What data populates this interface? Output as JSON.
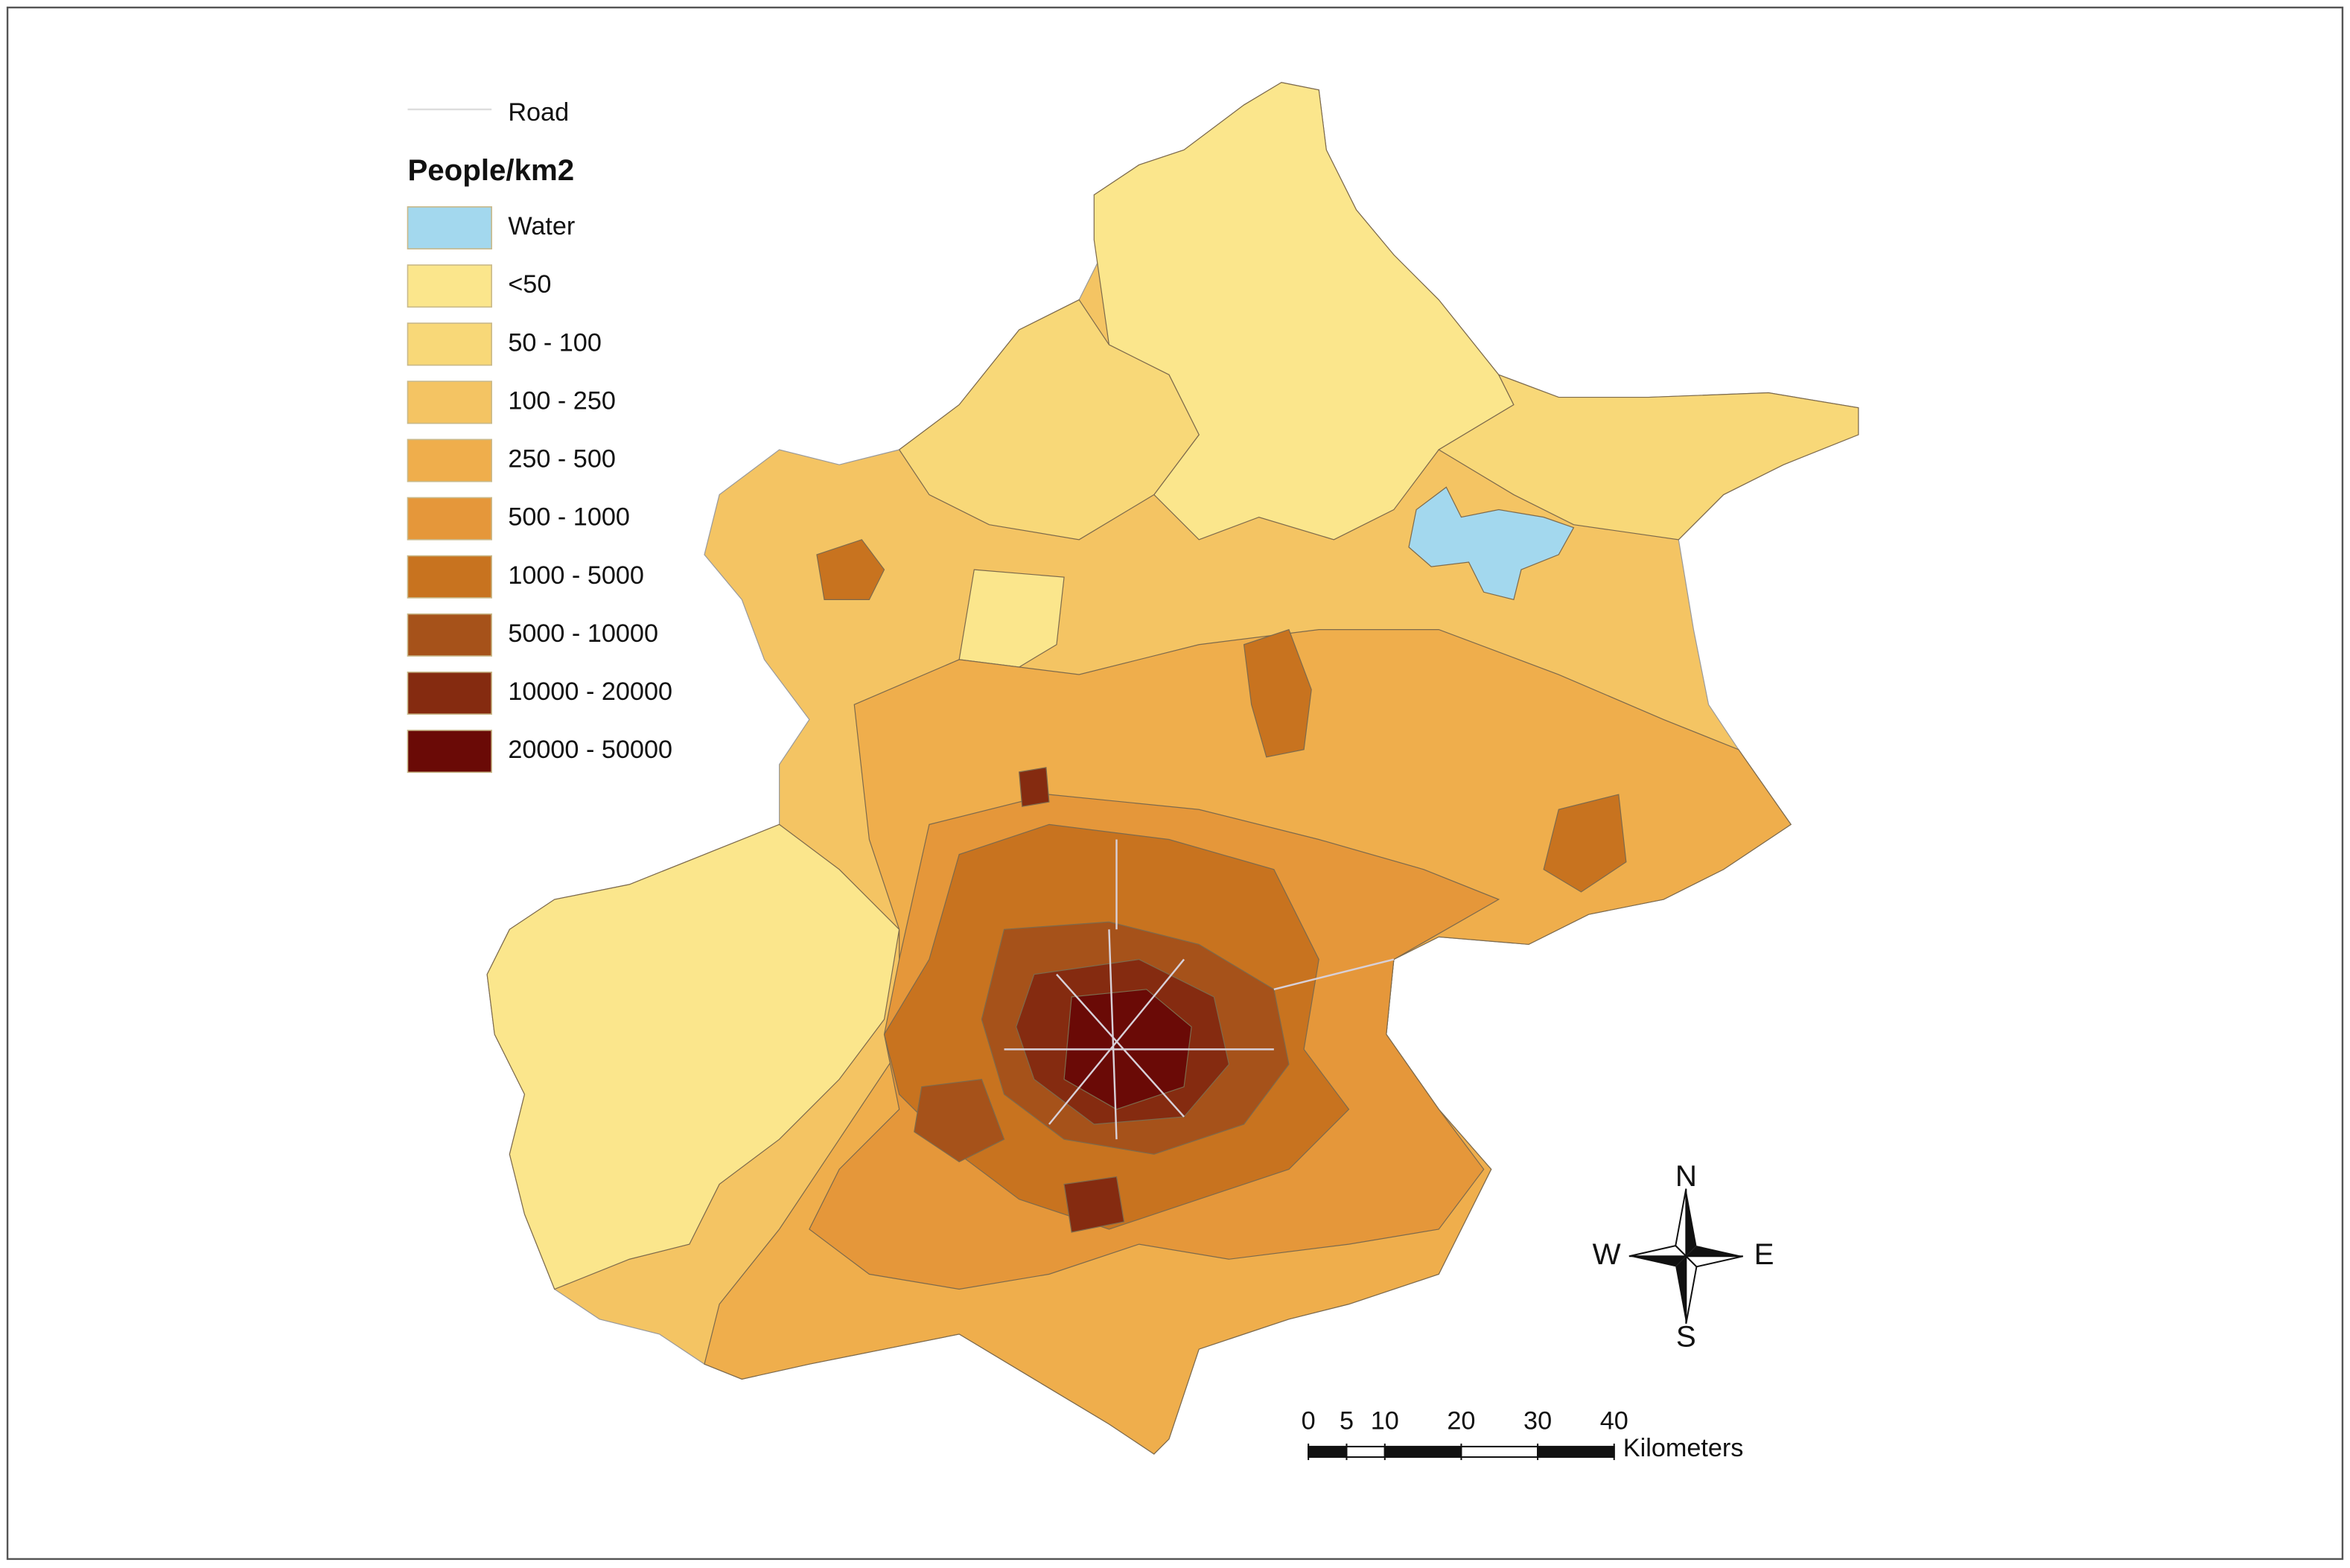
{
  "legend": {
    "road_label": "Road",
    "title": "People/km2",
    "items": [
      {
        "label": "Water",
        "color": "#a3d8ee"
      },
      {
        "label": "<50",
        "color": "#fbe68c"
      },
      {
        "label": "50 - 100",
        "color": "#f8d878"
      },
      {
        "label": "100 - 250",
        "color": "#f4c463"
      },
      {
        "label": "250 - 500",
        "color": "#efae4c"
      },
      {
        "label": "500 - 1000",
        "color": "#e5973a"
      },
      {
        "label": "1000 - 5000",
        "color": "#c8731f"
      },
      {
        "label": "5000 - 10000",
        "color": "#a6521a"
      },
      {
        "label": "10000 - 20000",
        "color": "#852b10"
      },
      {
        "label": "20000 - 50000",
        "color": "#6a0a06"
      }
    ]
  },
  "compass": {
    "north": "N",
    "south": "S",
    "west": "W",
    "east": "E"
  },
  "scale_bar": {
    "ticks": [
      0,
      5,
      10,
      20,
      30,
      40
    ],
    "unit": "Kilometers"
  }
}
